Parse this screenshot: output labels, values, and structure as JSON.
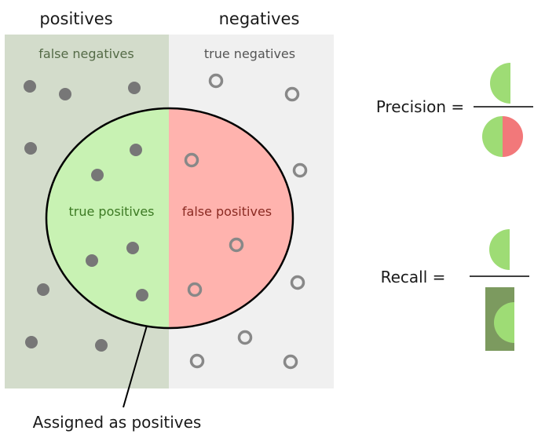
{
  "labels": {
    "positives": "positives",
    "negatives": "negatives",
    "false_negatives": "false negatives",
    "true_negatives": "true negatives",
    "true_positives": "true positives",
    "false_positives": "false positives",
    "assigned": "Assigned as positives"
  },
  "formulas": {
    "precision": "Precision =",
    "recall": "Recall ="
  },
  "colors": {
    "positives_region": "#d3dccb",
    "negatives_region": "#f0f0f0",
    "true_positives": "#c8f2b3",
    "false_positives": "#ffb3ae",
    "fraction_green": "#9edc75",
    "fraction_red": "#f2787a",
    "recall_box": "#7c9a5f",
    "dot": "#777777",
    "ring": "#888888",
    "fn_label": "#556b47",
    "tn_label": "#555555",
    "tp_label": "#3d7a24",
    "fp_label": "#8a2a22"
  },
  "icons": {
    "positive_marker": "filled-dot-icon",
    "negative_marker": "hollow-ring-icon"
  }
}
